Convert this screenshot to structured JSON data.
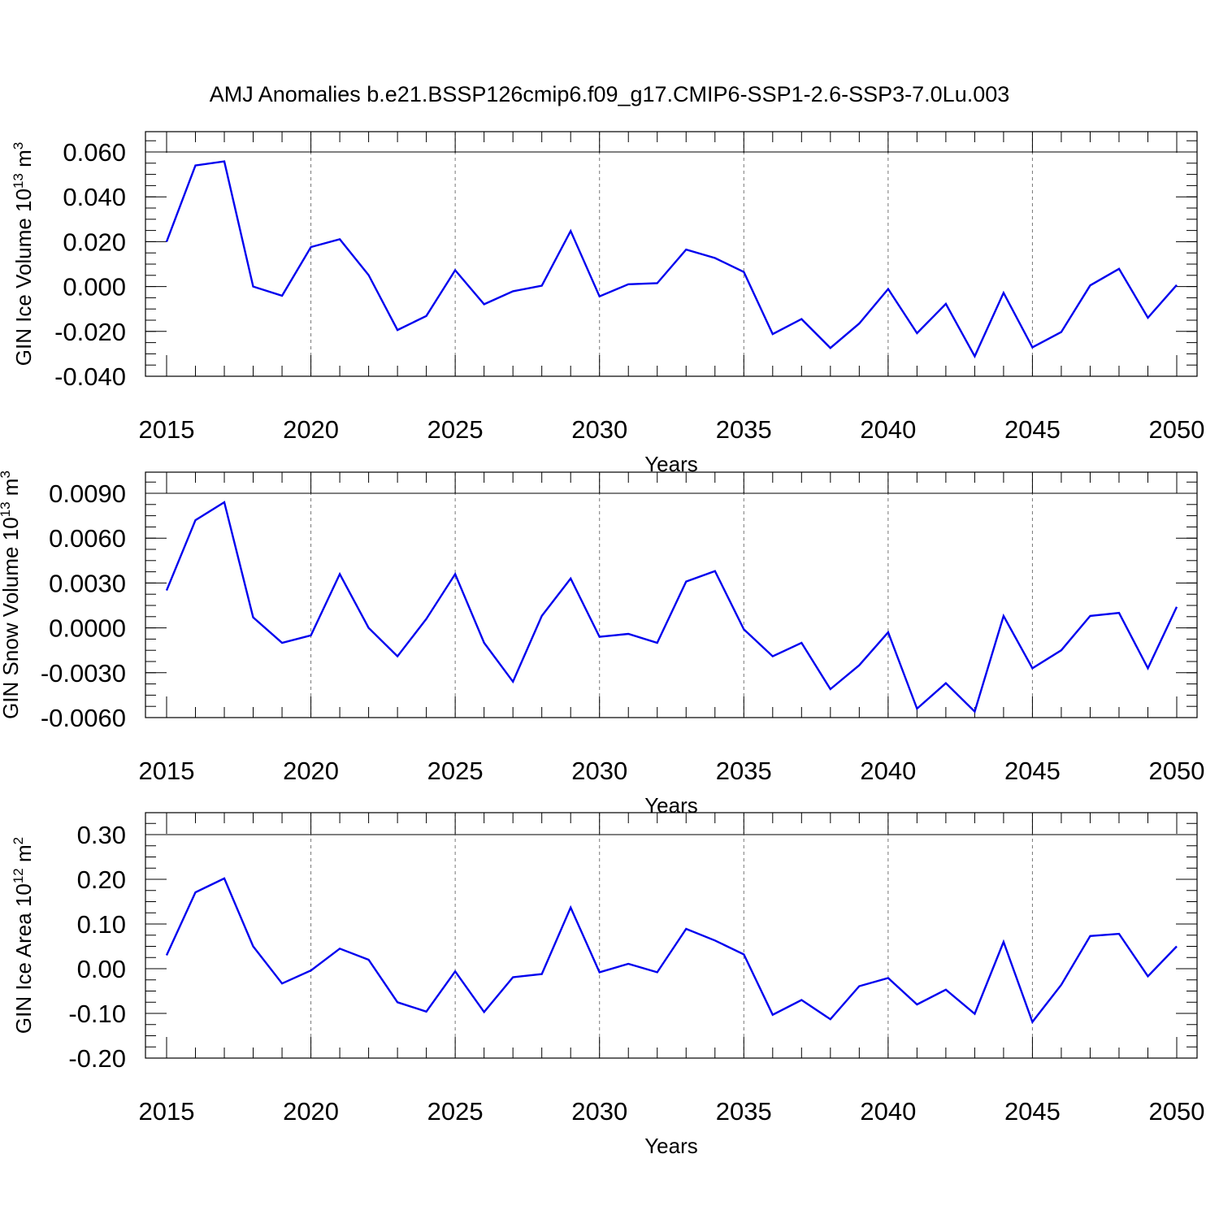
{
  "title": "AMJ Anomalies b.e21.BSSP126cmip6.f09_g17.CMIP6-SSP1-2.6-SSP3-7.0Lu.003",
  "colors": {
    "line": "#0000ee",
    "grid": "#777777",
    "axis": "#000000"
  },
  "chart_data": [
    {
      "type": "line",
      "xlabel": "Years",
      "ylabel_main": "GIN Ice Volume 10",
      "ylabel_exp": "13",
      "ylabel_unit": " m",
      "ylabel_unit_exp": "3",
      "xlim": [
        2015,
        2050
      ],
      "ylim": [
        -0.04,
        0.07
      ],
      "x_ticks": [
        2015,
        2020,
        2025,
        2030,
        2035,
        2040,
        2045,
        2050
      ],
      "x_tick_labels": [
        "2015",
        "2020",
        "2025",
        "2030",
        "2035",
        "2040",
        "2045",
        "2050"
      ],
      "y_ticks": [
        0.06,
        0.04,
        0.02,
        0.0,
        -0.02,
        -0.04
      ],
      "y_tick_labels": [
        "0.060",
        "0.040",
        "0.020",
        "0.000",
        "-0.020",
        "-0.040"
      ],
      "y_minor_step": 0.005,
      "vertical_grid": [
        2020,
        2025,
        2030,
        2035,
        2040,
        2045
      ],
      "x": [
        2015,
        2016,
        2017,
        2018,
        2019,
        2020,
        2021,
        2022,
        2023,
        2024,
        2025,
        2026,
        2027,
        2028,
        2029,
        2030,
        2031,
        2032,
        2033,
        2034,
        2035,
        2036,
        2037,
        2038,
        2039,
        2040,
        2041,
        2042,
        2043,
        2044,
        2045,
        2046,
        2047,
        2048,
        2049,
        2050
      ],
      "y": [
        0.02,
        0.054,
        0.0558,
        0.0,
        -0.0041,
        0.0176,
        0.0211,
        0.0051,
        -0.0194,
        -0.0131,
        0.0073,
        -0.0079,
        -0.0021,
        0.0004,
        0.0248,
        -0.0044,
        0.001,
        0.0015,
        0.0165,
        0.0127,
        0.0065,
        -0.0212,
        -0.0145,
        -0.0274,
        -0.0165,
        -0.0011,
        -0.0208,
        -0.0077,
        -0.0311,
        -0.0028,
        -0.0271,
        -0.0203,
        0.0005,
        0.0079,
        -0.0139,
        0.0007
      ]
    },
    {
      "type": "line",
      "xlabel": "Years",
      "ylabel_main": "GIN Snow Volume 10",
      "ylabel_exp": "13",
      "ylabel_unit": " m",
      "ylabel_unit_exp": "3",
      "xlim": [
        2015,
        2050
      ],
      "ylim": [
        -0.006,
        0.0104
      ],
      "x_ticks": [
        2015,
        2020,
        2025,
        2030,
        2035,
        2040,
        2045,
        2050
      ],
      "x_tick_labels": [
        "2015",
        "2020",
        "2025",
        "2030",
        "2035",
        "2040",
        "2045",
        "2050"
      ],
      "y_ticks": [
        0.009,
        0.006,
        0.003,
        0.0,
        -0.003,
        -0.006
      ],
      "y_tick_labels": [
        "0.0090",
        "0.0060",
        "0.0030",
        "0.0000",
        "-0.0030",
        "-0.0060"
      ],
      "y_minor_step": 0.00075,
      "vertical_grid": [
        2020,
        2025,
        2030,
        2035,
        2040,
        2045
      ],
      "x": [
        2015,
        2016,
        2017,
        2018,
        2019,
        2020,
        2021,
        2022,
        2023,
        2024,
        2025,
        2026,
        2027,
        2028,
        2029,
        2030,
        2031,
        2032,
        2033,
        2034,
        2035,
        2036,
        2037,
        2038,
        2039,
        2040,
        2041,
        2042,
        2043,
        2044,
        2045,
        2046,
        2047,
        2048,
        2049,
        2050
      ],
      "y": [
        0.0025,
        0.0072,
        0.0084,
        0.0007,
        -0.001,
        -0.0005,
        0.0036,
        0.0,
        -0.0019,
        0.0006,
        0.0036,
        -0.001,
        -0.0036,
        0.0008,
        0.0033,
        -0.0006,
        -0.0004,
        -0.001,
        0.0031,
        0.0038,
        -0.0001,
        -0.0019,
        -0.001,
        -0.0041,
        -0.0025,
        -0.0003,
        -0.0054,
        -0.0037,
        -0.0056,
        0.0008,
        -0.0027,
        -0.0015,
        0.0008,
        0.001,
        -0.0027,
        0.0014
      ]
    },
    {
      "type": "line",
      "xlabel": "Years",
      "ylabel_main": "GIN Ice Area 10",
      "ylabel_exp": "12",
      "ylabel_unit": " m",
      "ylabel_unit_exp": "2",
      "xlim": [
        2015,
        2050
      ],
      "ylim": [
        -0.2,
        0.35
      ],
      "x_ticks": [
        2015,
        2020,
        2025,
        2030,
        2035,
        2040,
        2045,
        2050
      ],
      "x_tick_labels": [
        "2015",
        "2020",
        "2025",
        "2030",
        "2035",
        "2040",
        "2045",
        "2050"
      ],
      "y_ticks": [
        0.3,
        0.2,
        0.1,
        0.0,
        -0.1,
        -0.2
      ],
      "y_tick_labels": [
        "0.30",
        "0.20",
        "0.10",
        "0.00",
        "-0.10",
        "-0.20"
      ],
      "y_minor_step": 0.025,
      "vertical_grid": [
        2020,
        2025,
        2030,
        2035,
        2040,
        2045
      ],
      "x": [
        2015,
        2016,
        2017,
        2018,
        2019,
        2020,
        2021,
        2022,
        2023,
        2024,
        2025,
        2026,
        2027,
        2028,
        2029,
        2030,
        2031,
        2032,
        2033,
        2034,
        2035,
        2036,
        2037,
        2038,
        2039,
        2040,
        2041,
        2042,
        2043,
        2044,
        2045,
        2046,
        2047,
        2048,
        2049,
        2050
      ],
      "y": [
        0.03,
        0.171,
        0.202,
        0.05,
        -0.033,
        -0.004,
        0.045,
        0.02,
        -0.075,
        -0.096,
        -0.006,
        -0.097,
        -0.019,
        -0.012,
        0.137,
        -0.008,
        0.011,
        -0.008,
        0.089,
        0.063,
        0.032,
        -0.103,
        -0.07,
        -0.113,
        -0.039,
        -0.021,
        -0.08,
        -0.047,
        -0.101,
        0.06,
        -0.119,
        -0.036,
        0.073,
        0.078,
        -0.017,
        0.05
      ]
    }
  ]
}
